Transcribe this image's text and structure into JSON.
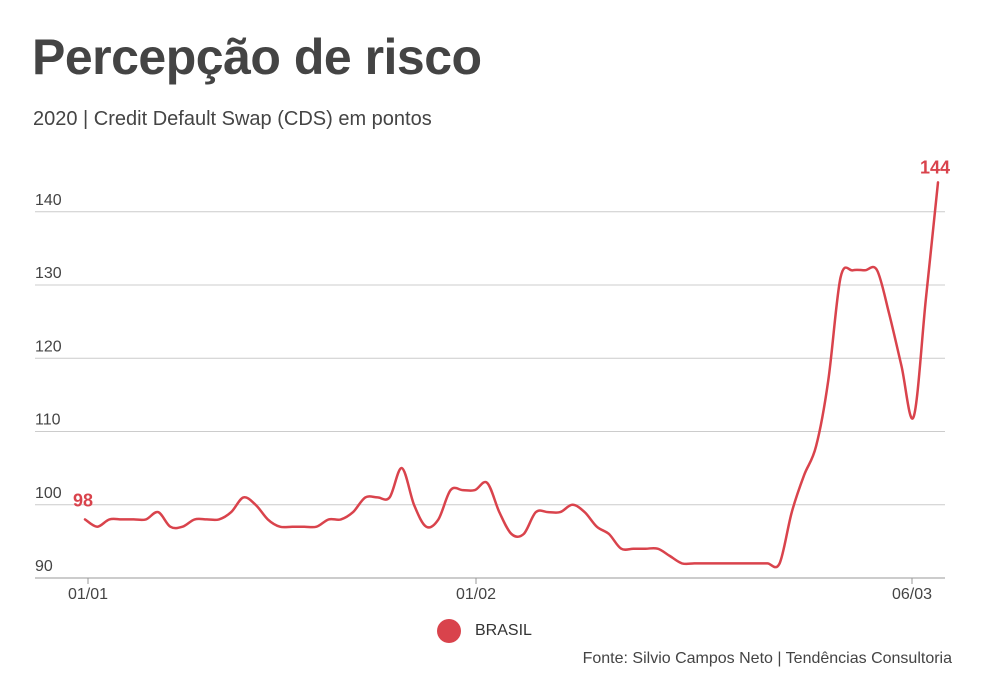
{
  "title": "Percepção de risco",
  "subtitle": "2020 | Credit Default Swap (CDS) em pontos",
  "source": "Fonte: Silvio Campos Neto | Tendências Consultoria",
  "colors": {
    "series": "#d9434c",
    "grid": "#cccccc",
    "axis": "#999999"
  },
  "chart_data": {
    "type": "line",
    "title": "Percepção de risco",
    "subtitle": "2020 | Credit Default Swap (CDS) em pontos",
    "xlabel": "",
    "ylabel": "",
    "ylim": [
      90,
      145
    ],
    "yticks": [
      90,
      100,
      110,
      120,
      130,
      140
    ],
    "xticks": [
      "01/01",
      "01/02",
      "06/03"
    ],
    "grid": true,
    "legend": "bottom-center",
    "series": [
      {
        "name": "BRASIL",
        "start_label": "98",
        "end_label": "144",
        "values": [
          98,
          97,
          98,
          98,
          98,
          98,
          99,
          97,
          97,
          98,
          98,
          98,
          99,
          101,
          100,
          98,
          97,
          97,
          97,
          97,
          98,
          98,
          99,
          101,
          101,
          101,
          105,
          100,
          97,
          98,
          102,
          102,
          102,
          103,
          99,
          96,
          96,
          99,
          99,
          99,
          100,
          99,
          97,
          96,
          94,
          94,
          94,
          94,
          93,
          92,
          92,
          92,
          92,
          92,
          92,
          92,
          92,
          92,
          99,
          104,
          108,
          117,
          131,
          132,
          132,
          132,
          126,
          119,
          112,
          128,
          144
        ]
      }
    ]
  }
}
